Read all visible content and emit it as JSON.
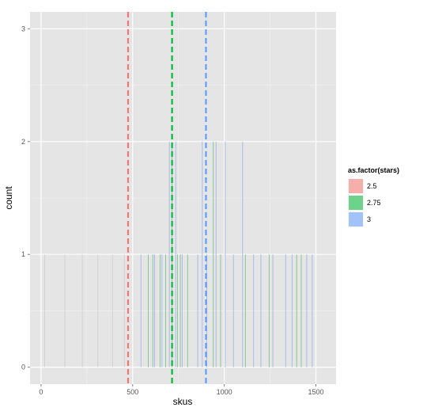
{
  "chart_data": {
    "type": "bar",
    "subtype": "histogram",
    "xlabel": "skus",
    "ylabel": "count",
    "xlim": [
      -60,
      1610
    ],
    "ylim": [
      -0.15,
      3.15
    ],
    "xticks": [
      0,
      500,
      1000,
      1500
    ],
    "yticks": [
      0,
      1,
      2,
      3
    ],
    "grid": true,
    "legend": {
      "title": "as.factor(stars)",
      "position": "right"
    },
    "series": [
      {
        "name": "2.5",
        "color": "#F8766D",
        "bar_color": "#cfcfcf",
        "x": [
          20,
          130,
          225,
          310,
          390,
          455
        ],
        "counts": [
          1,
          1,
          1,
          1,
          1,
          1
        ]
      },
      {
        "name": "2.75",
        "color": "#00BA38",
        "bar_color": "#7fc48b",
        "x": [
          585,
          610,
          650,
          680,
          715,
          745,
          760,
          800,
          940,
          980,
          1115,
          1245,
          1395,
          1420
        ],
        "counts": [
          1,
          1,
          1,
          1,
          2,
          1,
          1,
          1,
          2,
          1,
          1,
          1,
          1,
          1
        ]
      },
      {
        "name": "3",
        "color": "#619CFF",
        "bar_color": "#9fb7ea",
        "x": [
          545,
          620,
          660,
          700,
          735,
          770,
          855,
          880,
          905,
          955,
          1005,
          1050,
          1100,
          1160,
          1200,
          1265,
          1335,
          1370,
          1450,
          1480
        ],
        "counts": [
          1,
          1,
          1,
          2,
          2,
          1,
          1,
          2,
          1,
          2,
          2,
          1,
          2,
          1,
          1,
          1,
          1,
          1,
          1,
          1
        ]
      }
    ],
    "vlines": [
      {
        "x": 475,
        "series": "2.5"
      },
      {
        "x": 715,
        "series": "2.75"
      },
      {
        "x": 900,
        "series": "3"
      }
    ]
  }
}
